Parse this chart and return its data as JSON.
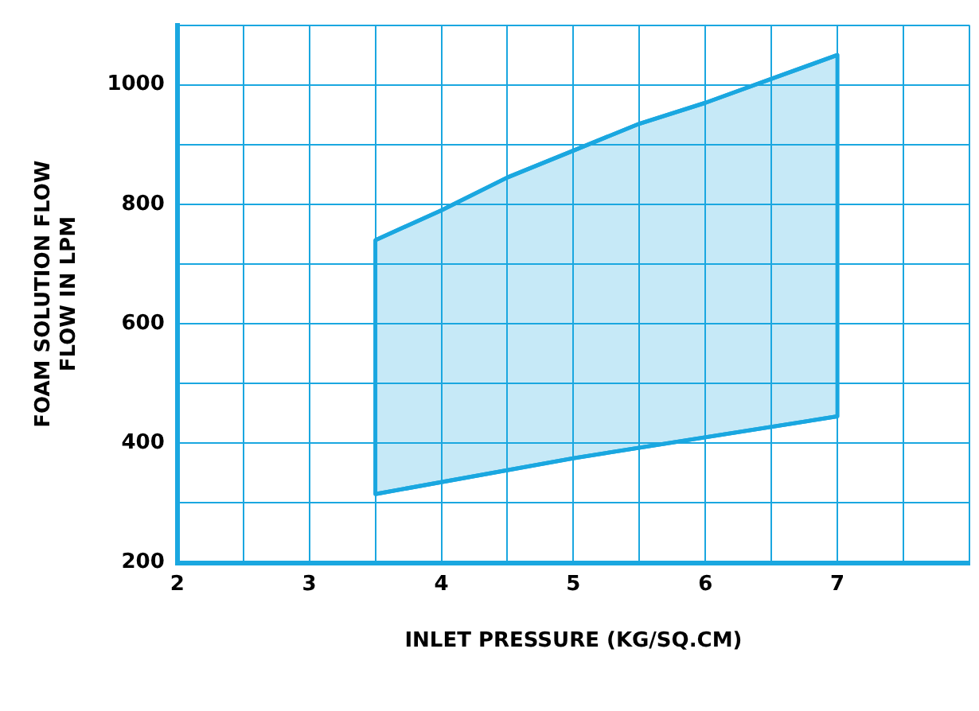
{
  "chart_data": {
    "type": "area",
    "xlabel": "INLET PRESSURE (KG/SQ.CM)",
    "ylabel": "FOAM SOLUTION FLOW\nFLOW IN LPM",
    "xlim": [
      2,
      8
    ],
    "xticks": [
      2,
      {
        "value": 2.5,
        "label": null
      },
      3,
      {
        "value": 3.5,
        "label": null
      },
      4,
      {
        "value": 4.5,
        "label": null
      },
      5,
      {
        "value": 5.5,
        "label": null
      },
      6,
      {
        "value": 6.5,
        "label": null
      },
      7,
      {
        "value": 7.5,
        "label": null
      },
      {
        "value": 8,
        "label": null
      }
    ],
    "ylim": [
      200,
      1100
    ],
    "yticks": [
      200,
      {
        "value": 300,
        "label": null
      },
      400,
      {
        "value": 500,
        "label": null
      },
      600,
      {
        "value": 700,
        "label": null
      },
      800,
      {
        "value": 900,
        "label": null
      },
      1000,
      {
        "value": 1100,
        "label": null
      }
    ],
    "grid": true,
    "legend": false,
    "marker": "none",
    "line_style": "solid",
    "series": [
      {
        "type": "line",
        "color": "#1aa7e0",
        "x": [
          3.5,
          5,
          7
        ],
        "values": [
          315,
          375,
          445
        ]
      },
      {
        "color": "#1aa7e0",
        "x": [
          3.5,
          4,
          4.5,
          5,
          5.5,
          6,
          6.5,
          7
        ],
        "values": [
          740,
          790,
          845,
          890,
          935,
          970,
          1010,
          1050
        ]
      }
    ]
  }
}
